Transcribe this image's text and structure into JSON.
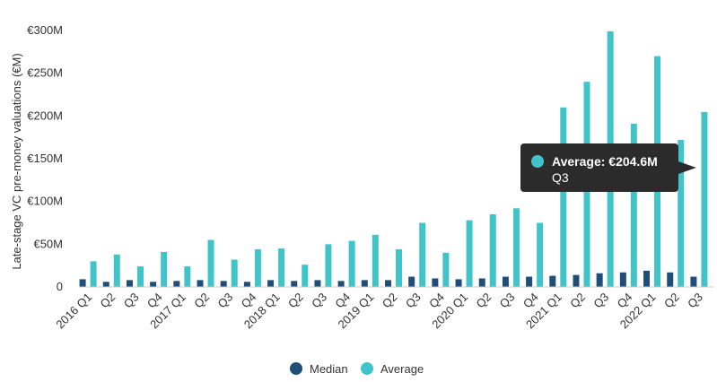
{
  "chart_data": {
    "type": "bar",
    "title": "",
    "xlabel": "",
    "ylabel": "Late-stage VC pre-money valuations (€M)",
    "ylim": [
      0,
      300
    ],
    "yticks": [
      {
        "value": 0,
        "label": "0"
      },
      {
        "value": 50,
        "label": "€50M"
      },
      {
        "value": 100,
        "label": "€100M"
      },
      {
        "value": 150,
        "label": "€150M"
      },
      {
        "value": 200,
        "label": "€200M"
      },
      {
        "value": 250,
        "label": "€250M"
      },
      {
        "value": 300,
        "label": "€300M"
      }
    ],
    "categories": [
      "2016 Q1",
      "Q2",
      "Q3",
      "Q4",
      "2017 Q1",
      "Q2",
      "Q3",
      "Q4",
      "2018 Q1",
      "Q2",
      "Q3",
      "Q4",
      "2019 Q1",
      "Q2",
      "Q3",
      "Q4",
      "2020 Q1",
      "Q2",
      "Q3",
      "Q4",
      "2021 Q1",
      "Q2",
      "Q3",
      "Q4",
      "2022 Q1",
      "Q2",
      "Q3"
    ],
    "series": [
      {
        "name": "Median",
        "color": "#1f4e79",
        "values": [
          9,
          6,
          8,
          6,
          7,
          8,
          7,
          6,
          8,
          7,
          8,
          7,
          8,
          8,
          12,
          10,
          9,
          10,
          12,
          12,
          13,
          14,
          16,
          17,
          19,
          17,
          12
        ]
      },
      {
        "name": "Average",
        "color": "#40c4c9",
        "values": [
          30,
          38,
          24,
          41,
          24,
          55,
          32,
          44,
          45,
          26,
          50,
          54,
          61,
          44,
          75,
          40,
          78,
          85,
          92,
          75,
          210,
          240,
          299,
          191,
          270,
          172,
          204.6
        ]
      }
    ],
    "grid": false,
    "legend_position": "bottom-center",
    "tooltip": {
      "series_index": 1,
      "category_index": 26,
      "title": "Average: €204.6M",
      "subtitle": "Q3",
      "background": "#2b2b2b",
      "marker_color": "#40c4c9"
    }
  }
}
